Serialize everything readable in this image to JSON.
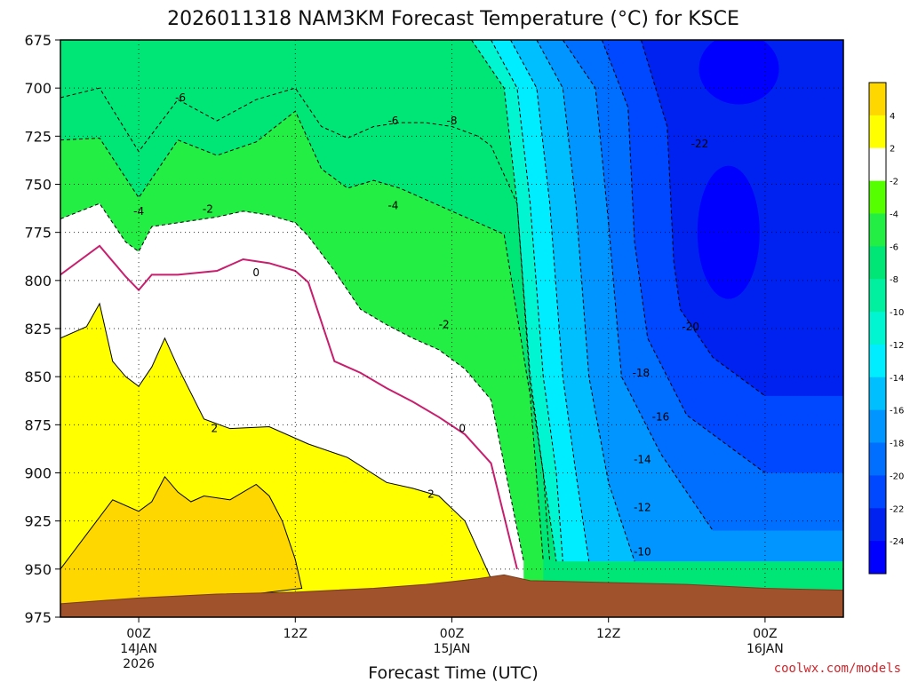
{
  "chart_data": {
    "type": "area",
    "title": "2026011318 NAM3KM Forecast Temperature (°C) for KSCE",
    "xlabel": "Forecast Time (UTC)",
    "ylabel": "",
    "credit": "coolwx.com/models",
    "y_axis": {
      "ticks": [
        "675",
        "700",
        "725",
        "750",
        "775",
        "800",
        "825",
        "850",
        "875",
        "900",
        "925",
        "950",
        "975"
      ],
      "range_hpa": [
        675,
        975
      ],
      "inverted": true
    },
    "x_axis": {
      "range_hours": [
        -6,
        54
      ],
      "ticks": [
        {
          "hour": 0,
          "lines": [
            "00Z",
            "14JAN",
            "2026"
          ]
        },
        {
          "hour": 12,
          "lines": [
            "12Z"
          ]
        },
        {
          "hour": 24,
          "lines": [
            "00Z",
            "15JAN"
          ]
        },
        {
          "hour": 36,
          "lines": [
            "12Z"
          ]
        },
        {
          "hour": 48,
          "lines": [
            "00Z",
            "16JAN"
          ]
        }
      ]
    },
    "grid": true,
    "colorbar": {
      "ticks": [
        "4",
        "2",
        "-2",
        "-4",
        "-6",
        "-8",
        "-10",
        "-12",
        "-14",
        "-16",
        "-18",
        "-20",
        "-22",
        "-24"
      ],
      "bands": [
        {
          "from": 4,
          "to": 6,
          "color": "#ffd700"
        },
        {
          "from": 2,
          "to": 4,
          "color": "#ffff00"
        },
        {
          "from": -2,
          "to": 2,
          "color": "#ffffff"
        },
        {
          "from": -4,
          "to": -2,
          "color": "#55ff00"
        },
        {
          "from": -6,
          "to": -4,
          "color": "#22ee44"
        },
        {
          "from": -8,
          "to": -6,
          "color": "#00e676"
        },
        {
          "from": -10,
          "to": -8,
          "color": "#00f0a0"
        },
        {
          "from": -12,
          "to": -10,
          "color": "#00f5d0"
        },
        {
          "from": -14,
          "to": -12,
          "color": "#00ecff"
        },
        {
          "from": -16,
          "to": -14,
          "color": "#00bfff"
        },
        {
          "from": -18,
          "to": -16,
          "color": "#0095ff"
        },
        {
          "from": -20,
          "to": -18,
          "color": "#006eff"
        },
        {
          "from": -22,
          "to": -20,
          "color": "#0048ff"
        },
        {
          "from": -24,
          "to": -22,
          "color": "#0022f0"
        },
        {
          "from": -26,
          "to": -24,
          "color": "#0000ff"
        }
      ]
    },
    "contour_labels": [
      {
        "text": "-6",
        "hour": 3.2,
        "hpa": 705
      },
      {
        "text": "-6",
        "hour": 19.5,
        "hpa": 717
      },
      {
        "text": "-8",
        "hour": 24.0,
        "hpa": 717
      },
      {
        "text": "-4",
        "hour": 0.0,
        "hpa": 764
      },
      {
        "text": "-2",
        "hour": 5.3,
        "hpa": 763
      },
      {
        "text": "-4",
        "hour": 19.5,
        "hpa": 761
      },
      {
        "text": "0",
        "hour": 9.0,
        "hpa": 796
      },
      {
        "text": "-2",
        "hour": 23.4,
        "hpa": 823
      },
      {
        "text": "-22",
        "hour": 43.0,
        "hpa": 729
      },
      {
        "text": "-20",
        "hour": 42.3,
        "hpa": 824
      },
      {
        "text": "-18",
        "hour": 38.5,
        "hpa": 848
      },
      {
        "text": "-16",
        "hour": 40.0,
        "hpa": 871
      },
      {
        "text": "-14",
        "hour": 38.6,
        "hpa": 893
      },
      {
        "text": "-12",
        "hour": 38.6,
        "hpa": 918
      },
      {
        "text": "-10",
        "hour": 38.6,
        "hpa": 941
      },
      {
        "text": "2",
        "hour": 5.8,
        "hpa": 877
      },
      {
        "text": "0",
        "hour": 24.8,
        "hpa": 877
      },
      {
        "text": "2",
        "hour": 22.4,
        "hpa": 911
      }
    ],
    "freezing_line_hpa": {
      "hours": [
        -6,
        -3,
        -1,
        0,
        1,
        3,
        6,
        8,
        10,
        12,
        13,
        15,
        17,
        19,
        21,
        23,
        25,
        27,
        29
      ],
      "hpa": [
        797,
        782,
        798,
        805,
        797,
        797,
        795,
        789,
        791,
        795,
        801,
        842,
        848,
        856,
        863,
        871,
        880,
        895,
        950
      ]
    },
    "zero_contour_bands": [
      {
        "level": -2,
        "hours": [
          -6,
          -3,
          -1,
          0,
          1,
          3,
          6,
          8,
          10,
          12,
          13,
          15,
          17,
          19,
          21,
          23,
          25,
          27,
          29.5
        ],
        "hpa": [
          768,
          760,
          780,
          785,
          772,
          770,
          767,
          764,
          766,
          770,
          777,
          795,
          815,
          823,
          830,
          836,
          846,
          862,
          946
        ]
      },
      {
        "level": -6,
        "hours": [
          -6,
          -3,
          0,
          3,
          6,
          9,
          12,
          14,
          16,
          18,
          20,
          22,
          24,
          26,
          28,
          30,
          31
        ],
        "hpa": [
          727,
          726,
          757,
          727,
          735,
          728,
          712,
          742,
          752,
          748,
          752,
          758,
          764,
          770,
          776,
          860,
          946
        ]
      },
      {
        "level": -8,
        "hours": [
          -6,
          -3,
          0,
          3,
          6,
          9,
          12,
          14,
          16,
          18,
          20,
          22,
          24,
          26,
          27,
          29,
          30,
          31,
          32
        ],
        "hpa": [
          705,
          700,
          733,
          706,
          717,
          706,
          700,
          720,
          726,
          720,
          718,
          718,
          720,
          725,
          730,
          760,
          855,
          900,
          946
        ]
      }
    ],
    "terrain_color": "#a0522d",
    "terrain_hpa": {
      "hours": [
        -6,
        0,
        6,
        12,
        18,
        22,
        26,
        28,
        30,
        36,
        42,
        48,
        54
      ],
      "hpa": [
        968,
        965,
        963,
        962,
        960,
        958,
        955,
        953,
        956,
        957,
        958,
        960,
        961
      ]
    },
    "legend": "right"
  }
}
